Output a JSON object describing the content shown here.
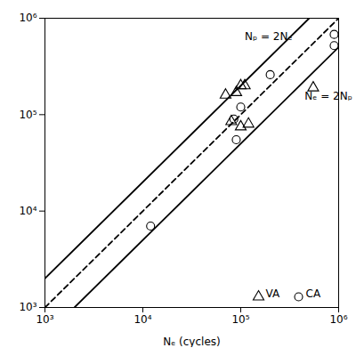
{
  "chart_data": {
    "type": "scatter",
    "log": true,
    "xlabel": "Nₑ (cycles)",
    "xlim": [
      1000,
      1000000
    ],
    "ylim": [
      1000,
      1000000
    ],
    "xticks": [
      {
        "value": 1000,
        "label": "10³"
      },
      {
        "value": 10000,
        "label": "10⁴"
      },
      {
        "value": 100000,
        "label": "10⁵"
      },
      {
        "value": 1000000,
        "label": "10⁶"
      }
    ],
    "yticks": [
      {
        "value": 1000,
        "label": "10³"
      },
      {
        "value": 10000,
        "label": "10⁴"
      },
      {
        "value": 100000,
        "label": "10⁵"
      },
      {
        "value": 1000000,
        "label": "10⁶"
      }
    ],
    "grid": false,
    "legend": "lower right",
    "series": [
      {
        "type": "line",
        "line_style": "solid",
        "color": "#000000",
        "x": [
          1000,
          500000
        ],
        "values": [
          2000,
          1000000
        ]
      },
      {
        "type": "line",
        "line_style": "dashed",
        "color": "#000000",
        "x": [
          1000,
          1000000
        ],
        "values": [
          1000,
          1000000
        ]
      },
      {
        "type": "line",
        "line_style": "solid",
        "color": "#000000",
        "x": [
          2000,
          1000000
        ],
        "values": [
          1000,
          500000
        ]
      },
      {
        "name": "VA",
        "type": "scatter",
        "marker": "triangle",
        "color": "#000000",
        "x": [
          70000,
          90000,
          100000,
          110000,
          80000,
          100000,
          120000,
          550000
        ],
        "values": [
          160000,
          170000,
          200000,
          200000,
          85000,
          75000,
          80000,
          190000
        ]
      },
      {
        "name": "CA",
        "type": "scatter",
        "marker": "circle",
        "color": "#000000",
        "x": [
          12000,
          90000,
          85000,
          100000,
          200000,
          900000,
          900000
        ],
        "values": [
          7000,
          55000,
          90000,
          120000,
          260000,
          520000,
          680000
        ]
      }
    ],
    "annotations": [
      {
        "text": "Nₚ = 2Nₑ",
        "x": 110000,
        "y": 650000
      },
      {
        "text": "Nₑ = 2Nₚ",
        "x": 450000,
        "y": 155000
      }
    ]
  }
}
